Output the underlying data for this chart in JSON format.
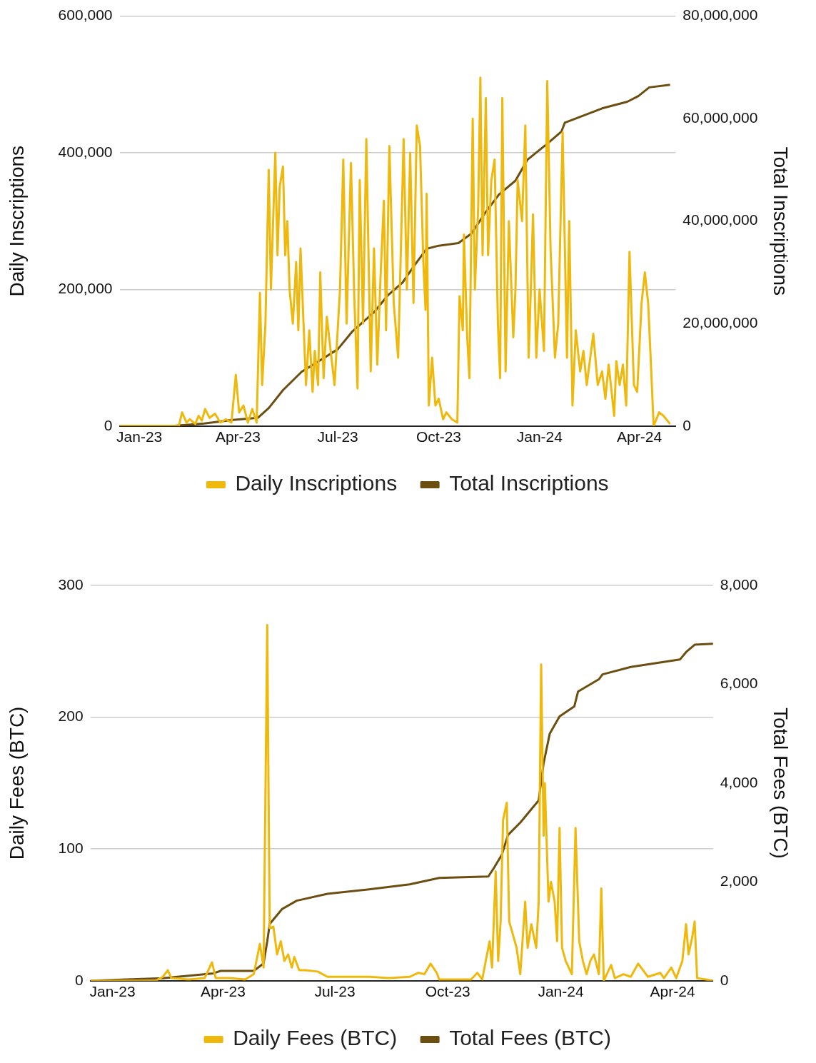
{
  "chart_data": [
    {
      "type": "line",
      "ylabel": "Daily Inscriptions",
      "y2label": "Total Inscriptions",
      "grid": "y",
      "legend": "bottom",
      "marker": "none",
      "xlim": [
        "2022-12-14",
        "2024-05-04"
      ],
      "xticks": [
        {
          "value": "2023-01-01",
          "label": "Jan-23"
        },
        {
          "value": "2023-04-01",
          "label": "Apr-23"
        },
        {
          "value": "2023-07-01",
          "label": "Jul-23"
        },
        {
          "value": "2023-10-01",
          "label": "Oct-23"
        },
        {
          "value": "2024-01-01",
          "label": "Jan-24"
        },
        {
          "value": "2024-04-01",
          "label": "Apr-24"
        }
      ],
      "ylim": [
        0,
        600000
      ],
      "yticks": [
        0,
        {
          "value": 200000,
          "label": "200,000"
        },
        {
          "value": 400000,
          "label": "400,000"
        },
        {
          "value": 600000,
          "label": "600,000"
        }
      ],
      "y2lim": [
        0,
        80000000
      ],
      "y2ticks": [
        0,
        {
          "value": 20000000,
          "label": "20,000,000"
        },
        {
          "value": 40000000,
          "label": "40,000,000"
        },
        {
          "value": 60000000,
          "label": "60,000,000"
        },
        {
          "value": 80000000,
          "label": "80,000,000"
        }
      ],
      "series": [
        {
          "name": "Daily Inscriptions",
          "color": "#efb80c",
          "x": [
            "2022-12-14",
            "2023-01-01",
            "2023-02-06",
            "2023-02-09",
            "2023-02-13",
            "2023-02-16",
            "2023-02-21",
            "2023-02-24",
            "2023-02-27",
            "2023-03-02",
            "2023-03-06",
            "2023-03-11",
            "2023-03-16",
            "2023-03-21",
            "2023-03-26",
            "2023-03-30",
            "2023-04-02",
            "2023-04-06",
            "2023-04-10",
            "2023-04-14",
            "2023-04-18",
            "2023-04-21",
            "2023-04-23",
            "2023-04-26",
            "2023-04-29",
            "2023-05-01",
            "2023-05-05",
            "2023-05-07",
            "2023-05-09",
            "2023-05-12",
            "2023-05-14",
            "2023-05-16",
            "2023-05-18",
            "2023-05-21",
            "2023-05-24",
            "2023-05-26",
            "2023-05-28",
            "2023-05-31",
            "2023-06-02",
            "2023-06-05",
            "2023-06-08",
            "2023-06-10",
            "2023-06-13",
            "2023-06-15",
            "2023-06-18",
            "2023-06-21",
            "2023-06-28",
            "2023-07-03",
            "2023-07-06",
            "2023-07-09",
            "2023-07-13",
            "2023-07-16",
            "2023-07-19",
            "2023-07-21",
            "2023-07-24",
            "2023-07-27",
            "2023-07-31",
            "2023-08-03",
            "2023-08-06",
            "2023-08-09",
            "2023-08-12",
            "2023-08-14",
            "2023-08-17",
            "2023-08-21",
            "2023-08-25",
            "2023-08-28",
            "2023-08-30",
            "2023-09-02",
            "2023-09-05",
            "2023-09-08",
            "2023-09-11",
            "2023-09-14",
            "2023-09-17",
            "2023-09-19",
            "2023-09-20",
            "2023-09-22",
            "2023-09-25",
            "2023-09-28",
            "2023-10-01",
            "2023-10-05",
            "2023-10-08",
            "2023-10-13",
            "2023-10-18",
            "2023-10-20",
            "2023-10-23",
            "2023-10-24",
            "2023-10-27",
            "2023-10-29",
            "2023-11-01",
            "2023-11-03",
            "2023-11-06",
            "2023-11-08",
            "2023-11-10",
            "2023-11-13",
            "2023-11-15",
            "2023-11-18",
            "2023-11-21",
            "2023-11-24",
            "2023-11-26",
            "2023-11-28",
            "2023-12-01",
            "2023-12-04",
            "2023-12-08",
            "2023-12-10",
            "2023-12-12",
            "2023-12-16",
            "2023-12-19",
            "2023-12-22",
            "2023-12-24",
            "2023-12-26",
            "2023-12-29",
            "2024-01-01",
            "2024-01-05",
            "2024-01-08",
            "2024-01-11",
            "2024-01-15",
            "2024-01-18",
            "2024-01-22",
            "2024-01-26",
            "2024-01-28",
            "2024-01-31",
            "2024-02-03",
            "2024-02-07",
            "2024-02-10",
            "2024-02-13",
            "2024-02-17",
            "2024-02-19",
            "2024-02-23",
            "2024-02-27",
            "2024-03-01",
            "2024-03-04",
            "2024-03-09",
            "2024-03-11",
            "2024-03-14",
            "2024-03-17",
            "2024-03-20",
            "2024-03-23",
            "2024-03-27",
            "2024-03-30",
            "2024-04-03",
            "2024-04-06",
            "2024-04-09",
            "2024-04-11",
            "2024-04-14",
            "2024-04-19",
            "2024-04-23",
            "2024-04-29"
          ],
          "values": [
            0,
            0,
            0,
            20000,
            5000,
            10000,
            3000,
            15000,
            8000,
            25000,
            12000,
            18000,
            5000,
            10000,
            5000,
            75000,
            20000,
            30000,
            5000,
            25000,
            5000,
            195000,
            60000,
            150000,
            375000,
            200000,
            400000,
            250000,
            350000,
            380000,
            250000,
            300000,
            200000,
            150000,
            240000,
            140000,
            260000,
            140000,
            60000,
            140000,
            50000,
            110000,
            60000,
            225000,
            70000,
            160000,
            60000,
            200000,
            390000,
            150000,
            385000,
            190000,
            55000,
            360000,
            150000,
            420000,
            80000,
            260000,
            90000,
            220000,
            330000,
            140000,
            410000,
            180000,
            100000,
            290000,
            420000,
            200000,
            400000,
            180000,
            440000,
            410000,
            240000,
            170000,
            340000,
            30000,
            100000,
            30000,
            40000,
            10000,
            20000,
            10000,
            5000,
            190000,
            140000,
            280000,
            130000,
            70000,
            450000,
            200000,
            320000,
            510000,
            250000,
            480000,
            250000,
            360000,
            390000,
            150000,
            70000,
            480000,
            80000,
            300000,
            130000,
            200000,
            360000,
            300000,
            440000,
            100000,
            200000,
            310000,
            100000,
            200000,
            110000,
            505000,
            260000,
            100000,
            150000,
            430000,
            100000,
            300000,
            30000,
            140000,
            80000,
            110000,
            60000,
            110000,
            135000,
            60000,
            80000,
            40000,
            90000,
            15000,
            95000,
            60000,
            90000,
            30000,
            255000,
            60000,
            50000,
            180000,
            225000,
            180000,
            110000,
            0,
            20000,
            15000,
            3000
          ]
        },
        {
          "name": "Total Inscriptions",
          "color": "#6b4e10",
          "axis": "y2",
          "x": [
            "2022-12-14",
            "2023-01-31",
            "2023-03-01",
            "2023-03-27",
            "2023-04-19",
            "2023-04-29",
            "2023-05-12",
            "2023-05-29",
            "2023-06-11",
            "2023-07-01",
            "2023-07-14",
            "2023-08-03",
            "2023-08-16",
            "2023-08-29",
            "2023-09-08",
            "2023-09-20",
            "2023-10-01",
            "2023-10-19",
            "2023-10-31",
            "2023-11-13",
            "2023-11-25",
            "2023-12-10",
            "2023-12-21",
            "2024-01-08",
            "2024-01-21",
            "2024-01-24",
            "2024-02-10",
            "2024-02-27",
            "2024-03-21",
            "2024-03-31",
            "2024-04-10",
            "2024-04-29"
          ],
          "values": [
            0,
            0,
            500000,
            1200000,
            1600000,
            3500000,
            7000000,
            10600000,
            12300000,
            15000000,
            18400000,
            22200000,
            25600000,
            28000000,
            31100000,
            34600000,
            35200000,
            35700000,
            37600000,
            41800000,
            45200000,
            47900000,
            52000000,
            55100000,
            57500000,
            59200000,
            60600000,
            62000000,
            63300000,
            64400000,
            66100000,
            66600000
          ]
        }
      ]
    },
    {
      "type": "line",
      "ylabel": "Daily Fees (BTC)",
      "y2label": "Total Fees (BTC)",
      "grid": "y",
      "legend": "bottom",
      "marker": "none",
      "xlim": [
        "2022-12-14",
        "2024-05-04"
      ],
      "xticks": [
        {
          "value": "2023-01-01",
          "label": "Jan-23"
        },
        {
          "value": "2023-04-01",
          "label": "Apr-23"
        },
        {
          "value": "2023-07-01",
          "label": "Jul-23"
        },
        {
          "value": "2023-10-01",
          "label": "Oct-23"
        },
        {
          "value": "2024-01-01",
          "label": "Jan-24"
        },
        {
          "value": "2024-04-01",
          "label": "Apr-24"
        }
      ],
      "ylim": [
        0,
        300
      ],
      "yticks": [
        0,
        100,
        200,
        300
      ],
      "y2lim": [
        0,
        8000
      ],
      "y2ticks": [
        0,
        {
          "value": 2000,
          "label": "2,000"
        },
        {
          "value": 4000,
          "label": "4,000"
        },
        {
          "value": 6000,
          "label": "6,000"
        },
        {
          "value": 8000,
          "label": "8,000"
        }
      ],
      "series": [
        {
          "name": "Daily Fees (BTC)",
          "color": "#efb80c",
          "x": [
            "2022-12-14",
            "2023-02-05",
            "2023-02-11",
            "2023-02-15",
            "2023-02-18",
            "2023-03-04",
            "2023-03-17",
            "2023-03-23",
            "2023-03-26",
            "2023-04-06",
            "2023-04-19",
            "2023-04-26",
            "2023-05-01",
            "2023-05-04",
            "2023-05-07",
            "2023-05-08",
            "2023-05-09",
            "2023-05-12",
            "2023-05-15",
            "2023-05-18",
            "2023-05-21",
            "2023-05-24",
            "2023-05-27",
            "2023-05-29",
            "2023-06-02",
            "2023-06-07",
            "2023-06-17",
            "2023-06-25",
            "2023-07-12",
            "2023-07-29",
            "2023-08-14",
            "2023-08-31",
            "2023-09-07",
            "2023-09-12",
            "2023-09-17",
            "2023-09-22",
            "2023-09-24",
            "2023-10-04",
            "2023-10-20",
            "2023-10-25",
            "2023-10-29",
            "2023-11-04",
            "2023-11-06",
            "2023-11-09",
            "2023-11-11",
            "2023-11-13",
            "2023-11-15",
            "2023-11-18",
            "2023-11-20",
            "2023-11-23",
            "2023-11-26",
            "2023-11-29",
            "2023-12-03",
            "2023-12-05",
            "2023-12-08",
            "2023-12-12",
            "2023-12-14",
            "2023-12-16",
            "2023-12-18",
            "2023-12-19",
            "2023-12-22",
            "2023-12-24",
            "2023-12-27",
            "2023-12-29",
            "2023-12-31",
            "2024-01-02",
            "2024-01-05",
            "2024-01-10",
            "2024-01-13",
            "2024-01-16",
            "2024-01-19",
            "2024-01-22",
            "2024-01-25",
            "2024-01-28",
            "2024-02-01",
            "2024-02-03",
            "2024-02-05",
            "2024-02-11",
            "2024-02-14",
            "2024-02-21",
            "2024-02-27",
            "2024-03-04",
            "2024-03-12",
            "2024-03-22",
            "2024-03-25",
            "2024-03-31",
            "2024-04-04",
            "2024-04-09",
            "2024-04-12",
            "2024-04-14",
            "2024-04-17",
            "2024-04-19",
            "2024-04-21",
            "2024-04-28",
            "2024-05-04"
          ],
          "values": [
            0,
            0,
            3,
            8,
            2,
            1,
            2,
            14,
            2,
            2,
            1,
            5,
            28,
            10,
            270,
            148,
            40,
            41,
            20,
            30,
            15,
            20,
            10,
            18,
            8,
            8,
            7,
            3,
            3,
            3,
            2,
            3,
            6,
            5,
            13,
            6,
            1,
            1,
            1,
            6,
            1,
            30,
            10,
            83,
            15,
            45,
            122,
            135,
            45,
            35,
            25,
            5,
            60,
            25,
            43,
            25,
            60,
            240,
            110,
            150,
            60,
            75,
            60,
            30,
            116,
            25,
            15,
            5,
            116,
            30,
            15,
            5,
            15,
            20,
            5,
            70,
            0,
            12,
            2,
            5,
            3,
            13,
            3,
            6,
            2,
            10,
            2,
            15,
            43,
            20,
            33,
            45,
            2,
            1,
            0
          ]
        },
        {
          "name": "Total Fees (BTC)",
          "color": "#6b4e10",
          "axis": "y2",
          "x": [
            "2022-12-14",
            "2023-02-11",
            "2023-03-24",
            "2023-03-30",
            "2023-04-26",
            "2023-05-04",
            "2023-05-07",
            "2023-05-09",
            "2023-05-19",
            "2023-05-31",
            "2023-06-25",
            "2023-07-29",
            "2023-08-31",
            "2023-09-24",
            "2023-11-03",
            "2023-11-08",
            "2023-11-14",
            "2023-11-19",
            "2023-11-29",
            "2023-12-09",
            "2023-12-14",
            "2023-12-18",
            "2023-12-23",
            "2023-12-31",
            "2024-01-12",
            "2024-01-15",
            "2024-02-01",
            "2024-02-04",
            "2024-02-27",
            "2024-04-07",
            "2024-04-12",
            "2024-04-19",
            "2024-05-04"
          ],
          "values": [
            0,
            50,
            150,
            200,
            200,
            350,
            800,
            1150,
            1450,
            1620,
            1760,
            1850,
            1950,
            2080,
            2110,
            2300,
            2550,
            2950,
            3200,
            3500,
            3650,
            4400,
            5000,
            5350,
            5550,
            5850,
            6100,
            6200,
            6350,
            6500,
            6650,
            6800,
            6820
          ]
        }
      ]
    }
  ]
}
